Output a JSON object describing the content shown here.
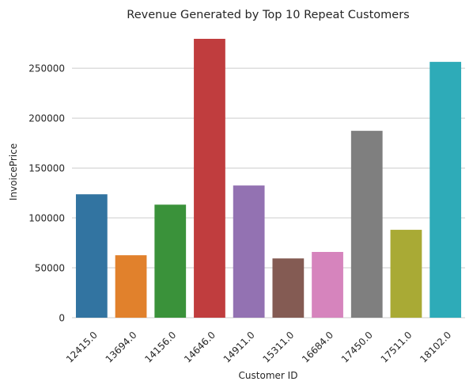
{
  "chart_data": {
    "type": "bar",
    "title": "Revenue Generated by Top 10 Repeat Customers",
    "xlabel": "Customer ID",
    "ylabel": "InvoicePrice",
    "categories": [
      "12415.0",
      "13694.0",
      "14156.0",
      "14646.0",
      "14911.0",
      "15311.0",
      "16684.0",
      "17450.0",
      "17511.0",
      "18102.0"
    ],
    "values": [
      123700,
      62600,
      113300,
      279500,
      132500,
      59400,
      65900,
      187300,
      88100,
      256400
    ],
    "colors": [
      "#3274a1",
      "#e1812c",
      "#3a923a",
      "#c03d3e",
      "#9372b2",
      "#845b53",
      "#d684bd",
      "#7f7f7f",
      "#a9aa35",
      "#2eabb8"
    ],
    "ylim": [
      0,
      293000
    ],
    "yticks": [
      0,
      50000,
      100000,
      150000,
      200000,
      250000
    ],
    "grid": "horizontal",
    "x_tick_rotation": 45,
    "legend": "none"
  }
}
